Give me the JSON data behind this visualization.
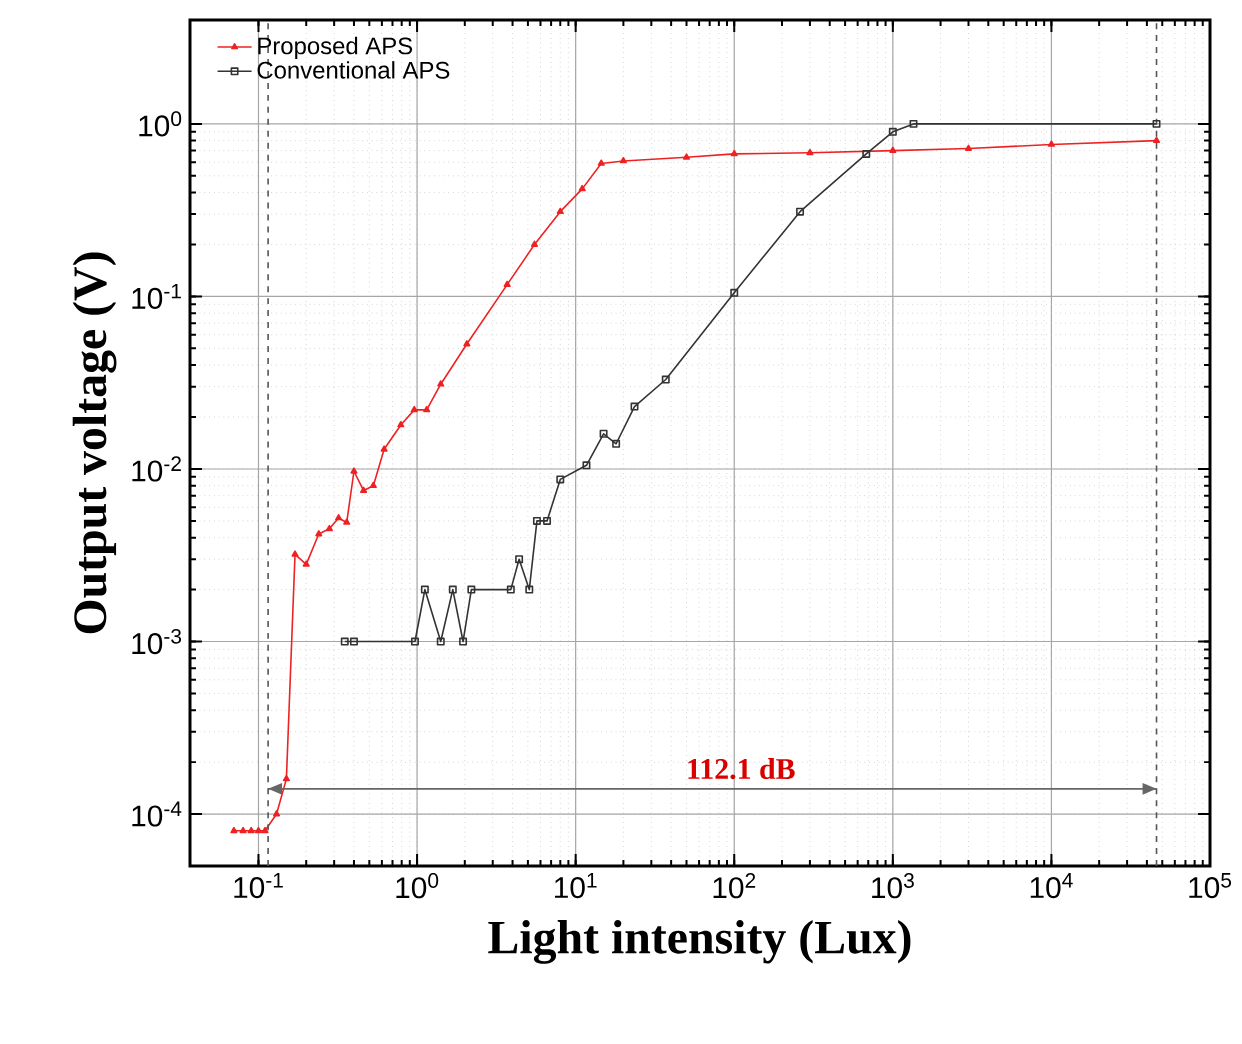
{
  "chart_data": {
    "type": "line",
    "xlabel": "Light intensity (Lux)",
    "ylabel": "Output voltage (V)",
    "log": "xy",
    "grid": true,
    "legend": "top left",
    "line_style": "solid",
    "xlim": [
      0.037,
      100000
    ],
    "ylim": [
      5e-05,
      4
    ],
    "xticks": [
      {
        "value": 0.1,
        "label": "10$^{-1}$"
      },
      {
        "value": 1,
        "label": "10$^{0}$"
      },
      {
        "value": 10,
        "label": "10$^{1}$"
      },
      {
        "value": 100,
        "label": "10$^{2}$"
      },
      {
        "value": 1000,
        "label": "10$^{3}$"
      },
      {
        "value": 10000,
        "label": "10$^{4}$"
      },
      {
        "value": 100000,
        "label": "10$^{5}$"
      }
    ],
    "yticks": [
      {
        "value": 0.0001,
        "label": "10$^{-4}$"
      },
      {
        "value": 0.001,
        "label": "10$^{-3}$"
      },
      {
        "value": 0.01,
        "label": "10$^{-2}$"
      },
      {
        "value": 0.1,
        "label": "10$^{-1}$"
      },
      {
        "value": 1,
        "label": "10$^{0}$"
      }
    ],
    "series": [
      {
        "name": "Proposed APS",
        "color": "#ee2222",
        "marker": "triangle",
        "x": [
          0.07,
          0.08,
          0.09,
          0.1,
          0.11,
          0.13,
          0.15,
          0.17,
          0.2,
          0.24,
          0.28,
          0.32,
          0.36,
          0.4,
          0.46,
          0.53,
          0.62,
          0.79,
          0.96,
          1.15,
          1.41,
          2.06,
          3.7,
          5.5,
          8,
          11,
          14.5,
          20,
          50,
          100,
          300,
          1000,
          3000,
          10000,
          46000
        ],
        "values": [
          8e-05,
          8e-05,
          8e-05,
          8e-05,
          8e-05,
          0.0001,
          0.00016,
          0.0032,
          0.0028,
          0.0042,
          0.0045,
          0.0052,
          0.0049,
          0.0097,
          0.0075,
          0.008,
          0.013,
          0.018,
          0.022,
          0.022,
          0.031,
          0.053,
          0.117,
          0.2,
          0.31,
          0.42,
          0.59,
          0.61,
          0.64,
          0.67,
          0.68,
          0.7,
          0.72,
          0.76,
          0.8
        ]
      },
      {
        "name": "Conventional APS",
        "color": "#333333",
        "marker": "square",
        "x": [
          0.35,
          0.4,
          0.97,
          1.12,
          1.41,
          1.68,
          1.95,
          2.2,
          3.9,
          4.4,
          5.1,
          5.7,
          6.6,
          8,
          11.7,
          15,
          18,
          23.5,
          37,
          100,
          260,
          680,
          1000,
          1350,
          46000
        ],
        "values": [
          0.001,
          0.001,
          0.001,
          0.002,
          0.001,
          0.002,
          0.001,
          0.002,
          0.002,
          0.003,
          0.002,
          0.005,
          0.005,
          0.0087,
          0.0105,
          0.016,
          0.014,
          0.023,
          0.033,
          0.105,
          0.31,
          0.67,
          0.9,
          1.0,
          1.0
        ]
      },
      {
        "color": "#666666",
        "marker": "none",
        "x": [
          0.115,
          46000
        ],
        "values": [
          0.00014,
          0.00014
        ]
      }
    ],
    "ref_lines": [
      {
        "axis": "x",
        "value": 0.115,
        "color": "#555555",
        "line_style": "dashed"
      },
      {
        "axis": "x",
        "value": 46000,
        "color": "#555555",
        "line_style": "dashed"
      }
    ],
    "annotations": [
      "112.1 dB"
    ]
  }
}
